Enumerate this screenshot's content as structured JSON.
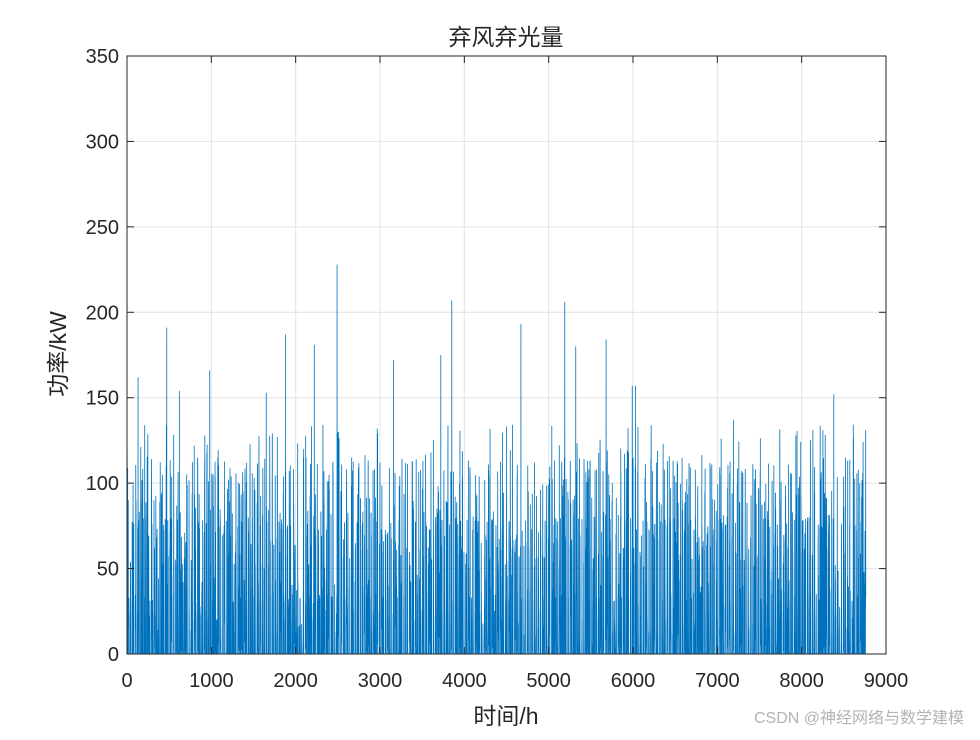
{
  "watermark": "CSDN @神经网络与数学建模",
  "colors": {
    "series": "#0072BD",
    "grid": "#e3e3e3",
    "axis": "#262626",
    "background": "#ffffff"
  },
  "chart_data": {
    "type": "line",
    "title": "弃风弃光量",
    "xlabel": "时间/h",
    "ylabel": "功率/kW",
    "xlim": [
      0,
      9000
    ],
    "ylim": [
      0,
      350
    ],
    "xticks": [
      0,
      1000,
      2000,
      3000,
      4000,
      5000,
      6000,
      7000,
      8000,
      9000
    ],
    "yticks": [
      0,
      50,
      100,
      150,
      200,
      250,
      300,
      350
    ],
    "grid": true,
    "n_points": 8760,
    "series": [
      {
        "notable_peaks": [
          {
            "x": 130,
            "y": 162
          },
          {
            "x": 470,
            "y": 191
          },
          {
            "x": 620,
            "y": 154
          },
          {
            "x": 980,
            "y": 166
          },
          {
            "x": 1650,
            "y": 153
          },
          {
            "x": 1880,
            "y": 187
          },
          {
            "x": 2220,
            "y": 181
          },
          {
            "x": 2490,
            "y": 228
          },
          {
            "x": 3160,
            "y": 172
          },
          {
            "x": 3720,
            "y": 175
          },
          {
            "x": 3850,
            "y": 207
          },
          {
            "x": 4670,
            "y": 193
          },
          {
            "x": 5190,
            "y": 206
          },
          {
            "x": 5320,
            "y": 180
          },
          {
            "x": 5680,
            "y": 184
          },
          {
            "x": 5990,
            "y": 157
          },
          {
            "x": 6030,
            "y": 157
          },
          {
            "x": 7190,
            "y": 137
          },
          {
            "x": 8380,
            "y": 152
          },
          {
            "x": 8750,
            "y": 72
          }
        ]
      }
    ]
  }
}
